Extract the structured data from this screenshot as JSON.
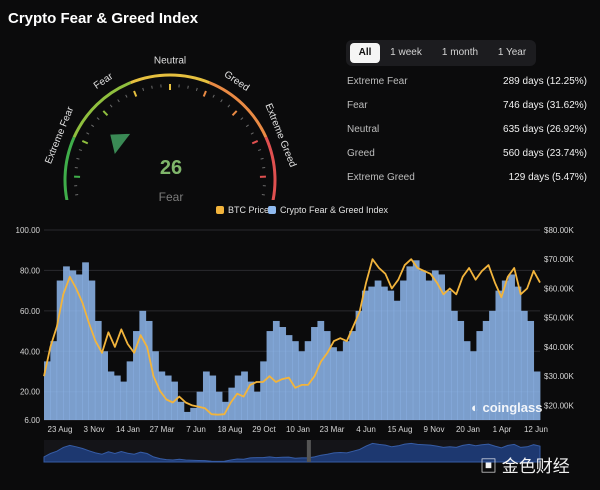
{
  "title": "Crypto Fear & Greed Index",
  "gauge": {
    "value": "26",
    "label": "Fear",
    "zones": [
      "Extreme Fear",
      "Fear",
      "Neutral",
      "Greed",
      "Extreme Greed"
    ],
    "zone_colors": [
      "#3fae4a",
      "#8fbf3e",
      "#e6c03f",
      "#e98a44",
      "#e05050"
    ]
  },
  "tabs": [
    "All",
    "1 week",
    "1 month",
    "1 Year"
  ],
  "active_tab": "All",
  "stats": [
    {
      "label": "Extreme Fear",
      "value": "289 days (12.25%)"
    },
    {
      "label": "Fear",
      "value": "746 days (31.62%)"
    },
    {
      "label": "Neutral",
      "value": "635 days (26.92%)"
    },
    {
      "label": "Greed",
      "value": "560 days (23.74%)"
    },
    {
      "label": "Extreme Greed",
      "value": "129 days (5.47%)"
    }
  ],
  "legend": {
    "btc": "BTC Price",
    "fgi": "Crypto Fear & Greed Index"
  },
  "brand": "coinglass",
  "watermark": "金色财经",
  "colors": {
    "btc": "#f2b43c",
    "fgi": "#8fb9ee",
    "background": "#0b0b0c"
  },
  "chart_data": {
    "type": "area",
    "y_left_ticks": [
      "100.00",
      "80.00",
      "60.00",
      "40.00",
      "20.00",
      "6.00"
    ],
    "y_right_ticks": [
      "$80.00K",
      "$70.00K",
      "$60.00K",
      "$50.00K",
      "$40.00K",
      "$30.00K",
      "$20.00K"
    ],
    "x_ticks": [
      "23 Aug",
      "3 Nov",
      "14 Jan",
      "27 Mar",
      "7 Jun",
      "18 Aug",
      "29 Oct",
      "10 Jan",
      "23 Mar",
      "4 Jun",
      "15 Aug",
      "9 Nov",
      "20 Jan",
      "1 Apr",
      "12 Jun"
    ],
    "ylim_left": [
      6,
      100
    ],
    "ylim_right": [
      15000,
      80000
    ],
    "series": [
      {
        "name": "Crypto Fear & Greed Index",
        "axis": "left",
        "values": [
          35,
          45,
          75,
          82,
          80,
          78,
          84,
          75,
          55,
          40,
          30,
          28,
          25,
          35,
          50,
          60,
          55,
          40,
          30,
          28,
          25,
          15,
          10,
          12,
          20,
          30,
          28,
          20,
          15,
          22,
          28,
          30,
          25,
          20,
          35,
          50,
          55,
          52,
          48,
          45,
          40,
          45,
          52,
          55,
          50,
          42,
          40,
          45,
          50,
          60,
          70,
          72,
          75,
          72,
          70,
          65,
          75,
          82,
          85,
          80,
          75,
          80,
          78,
          70,
          60,
          55,
          45,
          40,
          50,
          55,
          60,
          70,
          75,
          78,
          72,
          60,
          55,
          30
        ]
      },
      {
        "name": "BTC Price",
        "axis": "right",
        "values": [
          30000,
          40000,
          47000,
          58000,
          64000,
          60000,
          55000,
          48000,
          42000,
          38000,
          45000,
          40000,
          46000,
          41000,
          38000,
          44000,
          40000,
          30000,
          25000,
          22000,
          21000,
          23000,
          21000,
          20000,
          19500,
          19000,
          17000,
          16800,
          17000,
          21000,
          24000,
          23000,
          27000,
          28000,
          28000,
          30000,
          28000,
          29000,
          29500,
          26000,
          27000,
          27000,
          30000,
          35000,
          38000,
          42000,
          43000,
          42000,
          47000,
          52000,
          62000,
          70000,
          67000,
          65000,
          60000,
          63000,
          68000,
          70000,
          67000,
          66000,
          65000,
          62000,
          58000,
          60000,
          58000,
          64000,
          67000,
          63000,
          66000,
          68000,
          62000,
          57000,
          64000,
          67000,
          58000,
          60000,
          66000,
          62000
        ]
      }
    ]
  }
}
